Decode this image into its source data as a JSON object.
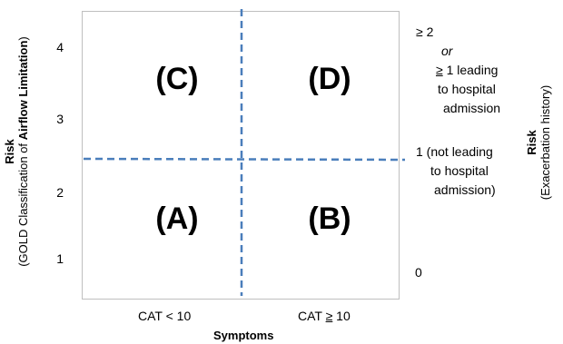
{
  "quadrants": {
    "c": "(C)",
    "d": "(D)",
    "a": "(A)",
    "b": "(B)"
  },
  "left_axis": {
    "title_bold": "Risk",
    "subtitle_pre": "(GOLD Classification of ",
    "subtitle_bold": "Airflow Limitation",
    "subtitle_post": ")",
    "ticks": [
      "4",
      "3",
      "2",
      "1"
    ]
  },
  "x_axis": {
    "title": "Symptoms",
    "left_category": "CAT < 10",
    "right_category_pre": "CAT ",
    "right_category_ge": "≥",
    "right_category_post": " 10"
  },
  "right_axis": {
    "title_bold": "Risk",
    "subtitle": "(Exacerbation history)",
    "top": {
      "line1": "≥ 2",
      "line2": "or",
      "line3_ge": "≥",
      "line3_rest": " 1  leading",
      "line4": "to hospital",
      "line5": "admission"
    },
    "mid": {
      "line1": "1 (not leading",
      "line2": "to hospital",
      "line3": "admission)"
    },
    "bottom": "0"
  },
  "colors": {
    "divider": "#4a7ebb",
    "border": "#bfbfbf"
  }
}
